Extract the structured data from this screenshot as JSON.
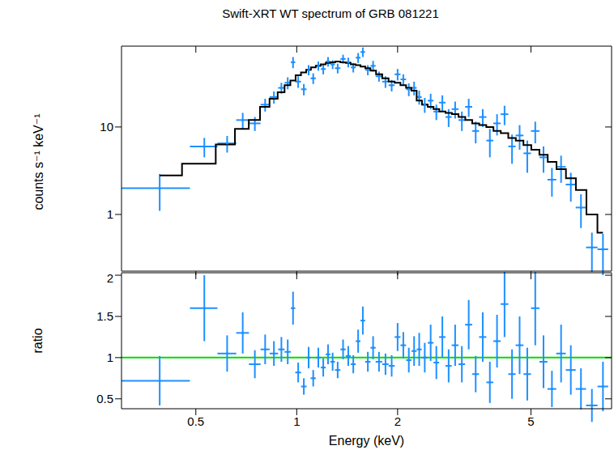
{
  "chart_data": [
    {
      "type": "scatter",
      "title": "Swift-XRT WT spectrum of GRB 081221",
      "y_label": "counts s⁻¹ keV⁻¹",
      "log": true,
      "tick_labels": "y",
      "xlim": [
        0.3,
        8.7
      ],
      "xticks": [
        0.5,
        1,
        2,
        5
      ],
      "ylim": [
        0.225,
        84
      ],
      "yticks": [
        1,
        10
      ],
      "x": [
        0.39,
        0.53,
        0.62,
        0.69,
        0.75,
        0.805,
        0.855,
        0.9,
        0.94,
        0.975,
        1.01,
        1.05,
        1.085,
        1.12,
        1.16,
        1.2,
        1.24,
        1.28,
        1.325,
        1.375,
        1.425,
        1.475,
        1.525,
        1.575,
        1.63,
        1.69,
        1.76,
        1.84,
        1.92,
        2.0,
        2.08,
        2.16,
        2.24,
        2.32,
        2.41,
        2.51,
        2.61,
        2.72,
        2.84,
        2.97,
        3.11,
        3.26,
        3.42,
        3.59,
        3.77,
        3.96,
        4.17,
        4.39,
        4.625,
        4.875,
        5.15,
        5.45,
        5.775,
        6.15,
        6.575,
        7.05,
        7.6,
        8.2
      ],
      "x_err": [
        0.09,
        0.05,
        0.04,
        0.03,
        0.03,
        0.025,
        0.025,
        0.02,
        0.02,
        0.015,
        0.02,
        0.02,
        0.015,
        0.02,
        0.02,
        0.02,
        0.02,
        0.02,
        0.025,
        0.025,
        0.025,
        0.025,
        0.025,
        0.025,
        0.03,
        0.03,
        0.04,
        0.04,
        0.04,
        0.04,
        0.04,
        0.04,
        0.04,
        0.04,
        0.05,
        0.05,
        0.05,
        0.06,
        0.06,
        0.07,
        0.07,
        0.08,
        0.08,
        0.09,
        0.09,
        0.1,
        0.11,
        0.11,
        0.125,
        0.125,
        0.15,
        0.15,
        0.175,
        0.2,
        0.225,
        0.25,
        0.3,
        0.3
      ],
      "series": [
        {
          "type": "scatter",
          "color": "#1e90ff",
          "values": [
            2.0,
            6.0,
            6.5,
            12,
            11,
            18,
            22,
            28,
            32,
            55,
            33,
            27,
            45,
            36,
            50,
            46,
            56,
            52,
            47,
            60,
            55,
            48,
            62,
            72,
            45,
            50,
            38,
            33,
            30,
            40,
            35,
            27,
            28,
            22,
            18,
            20,
            15,
            19,
            13,
            16,
            12,
            17,
            9,
            13,
            7,
            11,
            14,
            6,
            8,
            5,
            9,
            4.5,
            2.5,
            3.5,
            2.2,
            1.2,
            0.42,
            0.4
          ],
          "y_err": [
            0.9,
            1.5,
            1.4,
            2.5,
            2,
            3,
            3.5,
            4,
            5,
            8,
            5,
            4,
            6,
            5,
            6,
            6,
            7,
            6,
            6,
            7,
            7,
            6,
            8,
            9,
            6,
            7,
            5,
            5,
            4.5,
            6,
            5,
            4.5,
            5,
            4,
            3.5,
            4,
            3,
            4,
            3,
            3.5,
            3,
            4,
            2.5,
            3,
            2.5,
            3,
            3.5,
            2.2,
            2.5,
            2,
            2.5,
            1.5,
            0.9,
            1.2,
            0.8,
            0.5,
            0.2,
            0.2
          ]
        },
        {
          "type": "line",
          "line_style": "step",
          "color": "#000000",
          "values": [
            2.8,
            3.8,
            6.3,
            9.5,
            12,
            17,
            21,
            25,
            30,
            34,
            39,
            42,
            45,
            48,
            50,
            52,
            54,
            55,
            56,
            55,
            54,
            52,
            51,
            49,
            47,
            44,
            40,
            36,
            33,
            32,
            30,
            28,
            26,
            20,
            18,
            17,
            16,
            15,
            14.5,
            14,
            13,
            12,
            11,
            10.5,
            10,
            9,
            8.5,
            7.5,
            7,
            6.2,
            5.5,
            4.8,
            4.0,
            3.3,
            2.6,
            1.9,
            1.0,
            0.62
          ]
        }
      ]
    },
    {
      "type": "scatter",
      "y_label": "ratio",
      "x_label": "Energy (keV)",
      "log": "x",
      "xlim": [
        0.3,
        8.7
      ],
      "xticks": [
        0.5,
        1,
        2,
        5
      ],
      "ylim": [
        0.38,
        2.03
      ],
      "yticks": [
        0.5,
        1,
        1.5,
        2
      ],
      "reference_line": 1,
      "x": [
        0.39,
        0.53,
        0.62,
        0.69,
        0.75,
        0.805,
        0.855,
        0.9,
        0.94,
        0.975,
        1.01,
        1.05,
        1.085,
        1.12,
        1.16,
        1.2,
        1.24,
        1.28,
        1.325,
        1.375,
        1.425,
        1.475,
        1.525,
        1.575,
        1.63,
        1.69,
        1.76,
        1.84,
        1.92,
        2.0,
        2.08,
        2.16,
        2.24,
        2.32,
        2.41,
        2.51,
        2.61,
        2.72,
        2.84,
        2.97,
        3.11,
        3.26,
        3.42,
        3.59,
        3.77,
        3.96,
        4.17,
        4.39,
        4.625,
        4.875,
        5.15,
        5.45,
        5.775,
        6.15,
        6.575,
        7.05,
        7.6,
        8.2
      ],
      "x_err": [
        0.09,
        0.05,
        0.04,
        0.03,
        0.03,
        0.025,
        0.025,
        0.02,
        0.02,
        0.015,
        0.02,
        0.02,
        0.015,
        0.02,
        0.02,
        0.02,
        0.02,
        0.02,
        0.025,
        0.025,
        0.025,
        0.025,
        0.025,
        0.025,
        0.03,
        0.03,
        0.04,
        0.04,
        0.04,
        0.04,
        0.04,
        0.04,
        0.04,
        0.04,
        0.05,
        0.05,
        0.05,
        0.06,
        0.06,
        0.07,
        0.07,
        0.08,
        0.08,
        0.09,
        0.09,
        0.1,
        0.11,
        0.11,
        0.125,
        0.125,
        0.15,
        0.15,
        0.175,
        0.2,
        0.225,
        0.25,
        0.3,
        0.3
      ],
      "series": [
        {
          "type": "scatter",
          "color": "#1e90ff",
          "values": [
            0.72,
            1.6,
            1.05,
            1.3,
            0.92,
            1.1,
            1.05,
            1.1,
            1.07,
            1.6,
            0.82,
            0.65,
            1.0,
            0.75,
            1.0,
            0.88,
            1.04,
            0.95,
            0.85,
            1.1,
            1.02,
            0.92,
            1.2,
            1.45,
            0.95,
            1.12,
            0.95,
            0.92,
            0.9,
            1.25,
            1.15,
            0.97,
            1.08,
            1.1,
            1.0,
            1.18,
            0.94,
            1.25,
            0.9,
            1.15,
            0.92,
            1.4,
            0.8,
            1.25,
            0.7,
            1.2,
            1.65,
            0.8,
            1.15,
            0.8,
            1.6,
            0.95,
            0.62,
            1.05,
            0.85,
            0.62,
            0.42,
            0.65
          ],
          "y_err": [
            0.3,
            0.4,
            0.22,
            0.25,
            0.17,
            0.18,
            0.15,
            0.15,
            0.15,
            0.2,
            0.12,
            0.1,
            0.13,
            0.1,
            0.12,
            0.11,
            0.12,
            0.11,
            0.1,
            0.12,
            0.12,
            0.11,
            0.14,
            0.17,
            0.12,
            0.14,
            0.12,
            0.13,
            0.13,
            0.17,
            0.16,
            0.15,
            0.18,
            0.2,
            0.18,
            0.22,
            0.2,
            0.25,
            0.2,
            0.25,
            0.22,
            0.3,
            0.22,
            0.3,
            0.25,
            0.32,
            0.4,
            0.3,
            0.35,
            0.32,
            0.45,
            0.32,
            0.22,
            0.35,
            0.3,
            0.25,
            0.2,
            0.3
          ]
        }
      ]
    }
  ]
}
